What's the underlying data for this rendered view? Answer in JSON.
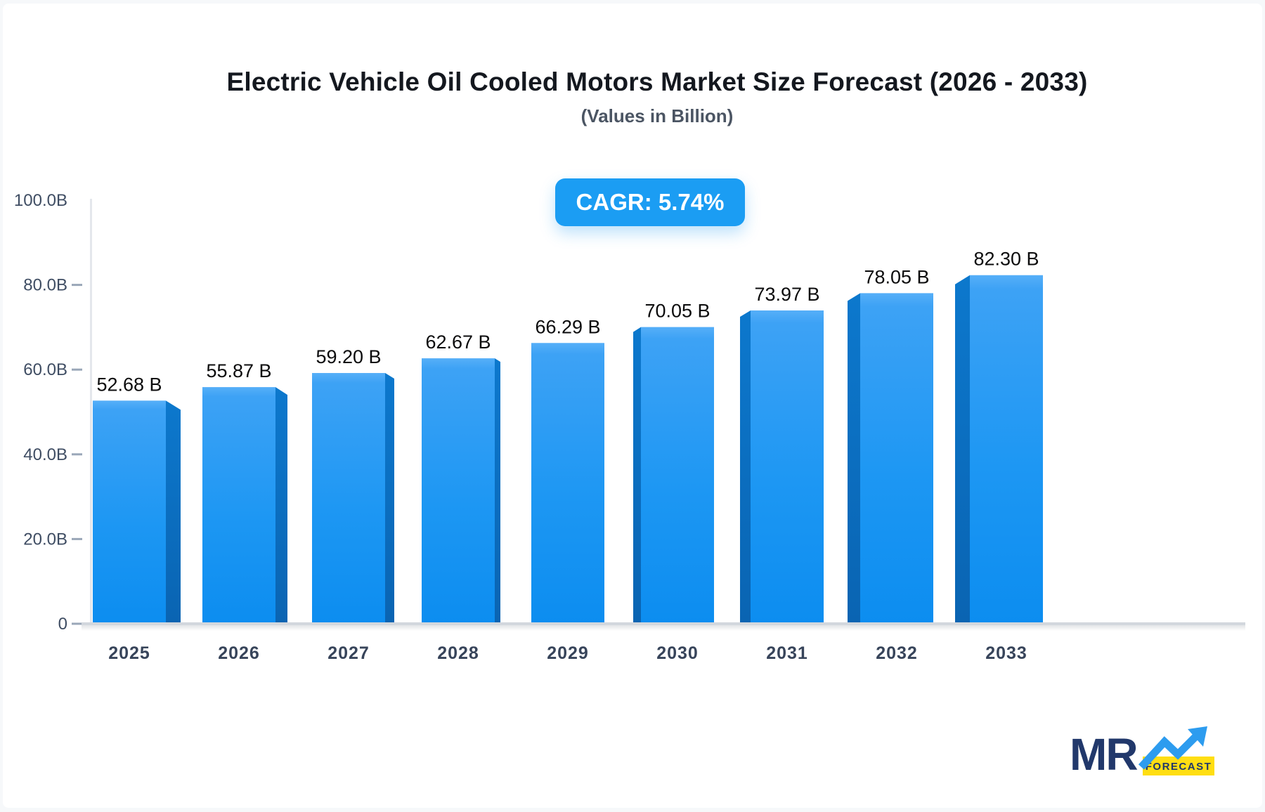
{
  "header": {
    "title": "Electric Vehicle Oil Cooled Motors Market Size Forecast (2026 - 2033)",
    "subtitle": "(Values in Billion)",
    "cagr_label": "CAGR: 5.74%"
  },
  "chart_data": {
    "type": "bar",
    "title": "Electric Vehicle Oil Cooled Motors Market Size Forecast (2026 - 2033)",
    "subtitle": "(Values in Billion)",
    "xlabel": "",
    "ylabel": "",
    "unit": "Billion",
    "ylim": [
      0,
      100
    ],
    "grid": false,
    "legend": "none",
    "categories": [
      "2025",
      "2026",
      "2027",
      "2028",
      "2029",
      "2030",
      "2031",
      "2032",
      "2033"
    ],
    "values": [
      52.68,
      55.87,
      59.2,
      62.67,
      66.29,
      70.05,
      73.97,
      78.05,
      82.3
    ],
    "value_labels": [
      "52.68 B",
      "55.87 B",
      "59.20 B",
      "62.67 B",
      "66.29 B",
      "70.05 B",
      "73.97 B",
      "78.05 B",
      "82.30 B"
    ],
    "y_ticks": [
      {
        "label": "100.0B",
        "value": 100,
        "dash": false
      },
      {
        "label": "80.0B",
        "value": 80,
        "dash": true
      },
      {
        "label": "60.0B",
        "value": 60,
        "dash": true
      },
      {
        "label": "40.0B",
        "value": 40,
        "dash": true
      },
      {
        "label": "20.0B",
        "value": 20,
        "dash": true
      },
      {
        "label": "0",
        "value": 0,
        "dash": true
      }
    ],
    "cagr": "5.74%"
  },
  "colors": {
    "badge": "#1b9df3",
    "bar_front_top": "#56aff8",
    "bar_front_mid": "#1d97f3",
    "bar_front_bottom": "#0c8df0",
    "bar_side_top": "#0c78cd",
    "bar_side_bottom": "#0a64b2",
    "axis_line": "#e4e7ec",
    "baseline": "#d2d7dd",
    "tick": "#9aa7b8",
    "y_label": "#3f4d63",
    "x_label": "#37445a",
    "value_label": "#0b0b0c",
    "title": "#14181f",
    "subtitle": "#4b5563",
    "logo_navy": "#21386b",
    "logo_blue": "#2d9cef",
    "logo_yellow": "#ffde12"
  },
  "logo": {
    "text": "MR",
    "sub": "FORECAST"
  }
}
